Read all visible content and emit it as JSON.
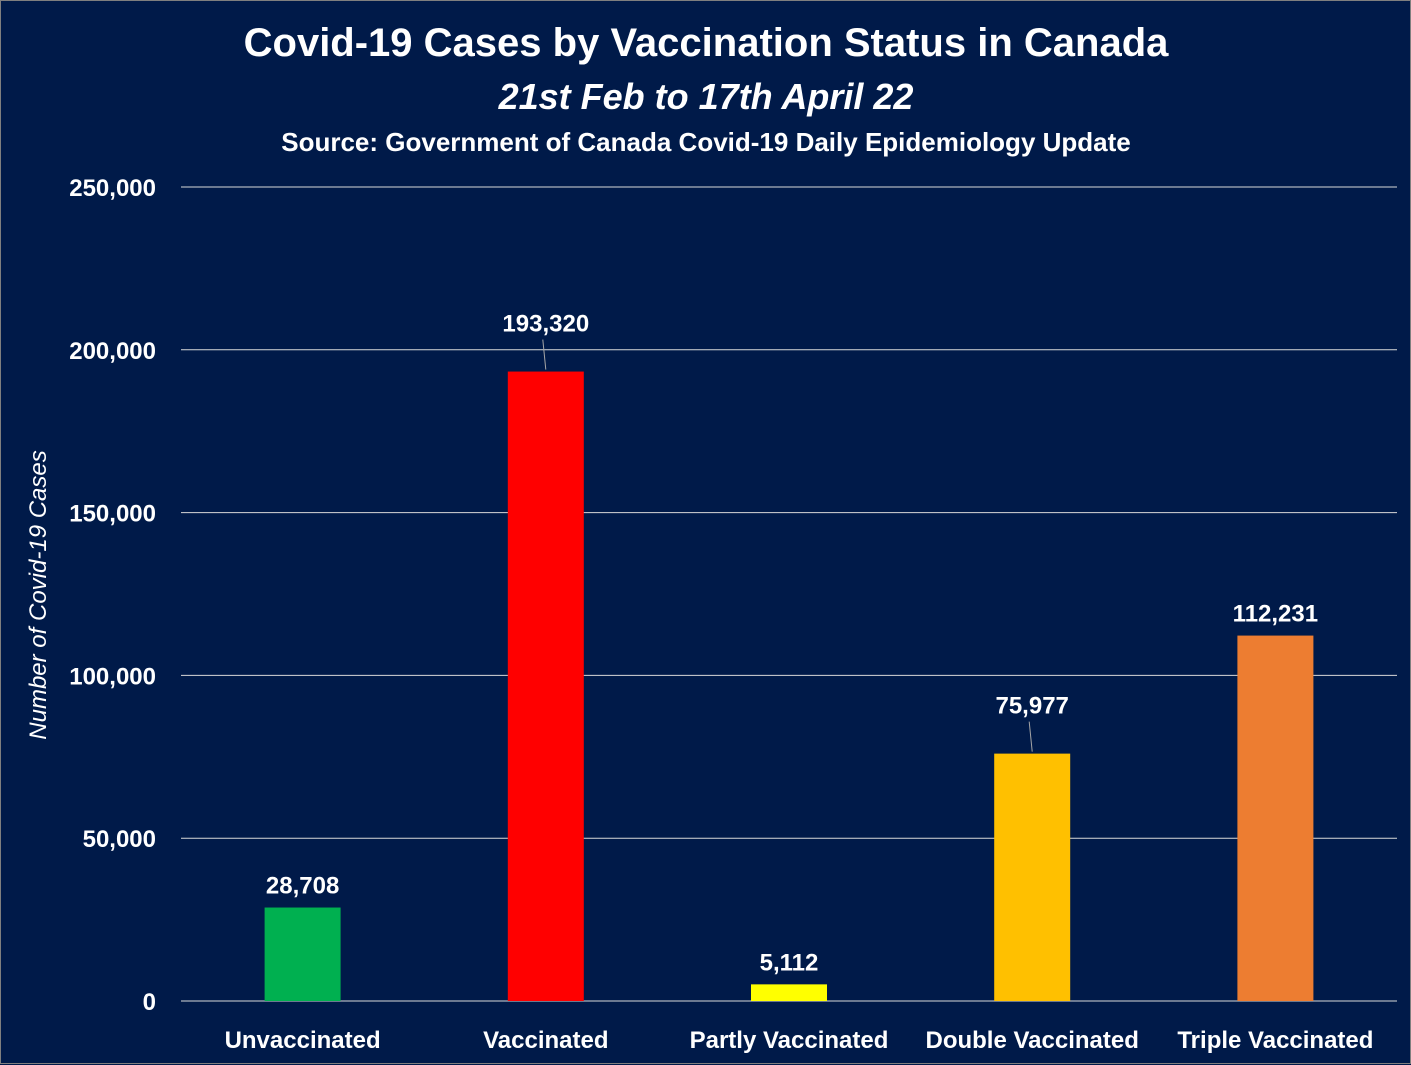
{
  "chart_data": {
    "type": "bar",
    "title": "Covid-19 Cases by Vaccination Status in Canada",
    "subtitle": "21st Feb to 17th April 22",
    "source": "Source: Government of Canada Covid-19 Daily Epidemiology Update",
    "xlabel": "",
    "ylabel": "Number of Covid-19 Cases",
    "ylim": [
      0,
      250000
    ],
    "yticks": [
      0,
      50000,
      100000,
      150000,
      200000,
      250000
    ],
    "ytick_labels": [
      "0",
      "50,000",
      "100,000",
      "150,000",
      "200,000",
      "250,000"
    ],
    "grid": true,
    "categories": [
      "Unvaccinated",
      "Vaccinated",
      "Partly Vaccinated",
      "Double Vaccinated",
      "Triple Vaccinated"
    ],
    "values": [
      28708,
      193320,
      5112,
      75977,
      112231
    ],
    "value_labels": [
      "28,708",
      "193,320",
      "5,112",
      "75,977",
      "112,231"
    ],
    "colors": [
      "#00b050",
      "#ff0000",
      "#ffff00",
      "#ffc000",
      "#ed7d31"
    ]
  },
  "style": {
    "background": "#001a49",
    "text_color": "#ffffff",
    "grid_color": "#d9d9d9"
  }
}
